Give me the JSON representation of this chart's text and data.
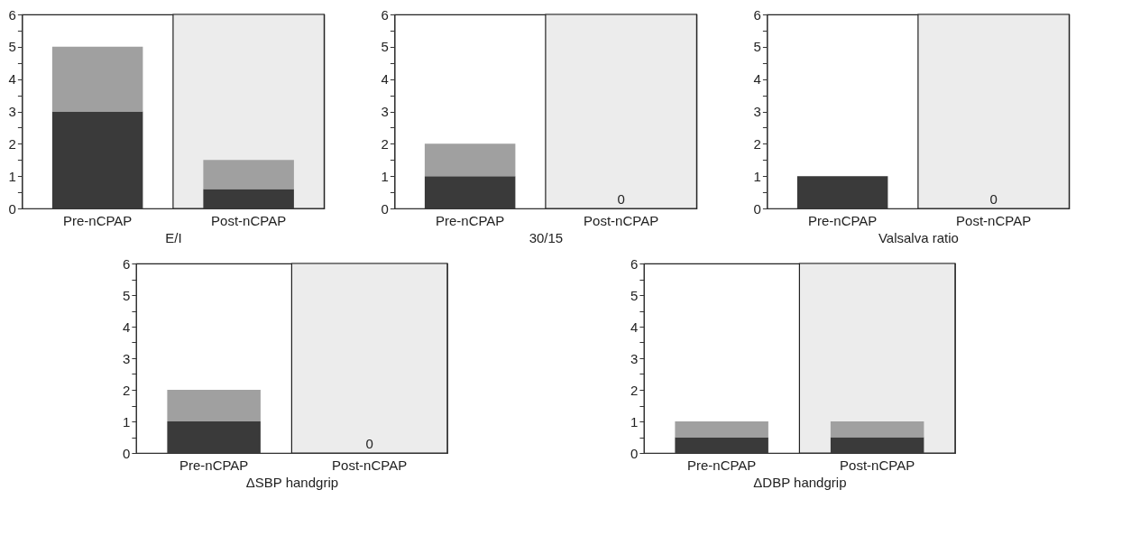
{
  "chart_data": [
    {
      "type": "bar",
      "xlabel": "E/I",
      "categories": [
        "Pre-nCPAP",
        "Post-nCPAP"
      ],
      "stacked": true,
      "ylim": [
        0,
        6
      ],
      "yticks": [
        0,
        {
          "value": 0.5,
          "label": null
        },
        1,
        {
          "value": 1.5,
          "label": null
        },
        2,
        {
          "value": 2.5,
          "label": null
        },
        3,
        {
          "value": 3.5,
          "label": null
        },
        4,
        {
          "value": 4.5,
          "label": null
        },
        5,
        {
          "value": 5.5,
          "label": null
        },
        6
      ],
      "series": [
        {
          "color": "#3a3a3a",
          "values": [
            3,
            0.6
          ]
        },
        {
          "color": "#a0a0a0",
          "values": [
            2,
            0.9
          ]
        }
      ],
      "bands": [
        {
          "axis": "x",
          "from": "Post-nCPAP",
          "to": "Post-nCPAP",
          "color": "#ececec"
        }
      ]
    },
    {
      "type": "bar",
      "xlabel": "30/15",
      "categories": [
        "Pre-nCPAP",
        "Post-nCPAP"
      ],
      "stacked": true,
      "ylim": [
        0,
        6
      ],
      "yticks": [
        0,
        {
          "value": 0.5,
          "label": null
        },
        1,
        {
          "value": 1.5,
          "label": null
        },
        2,
        {
          "value": 2.5,
          "label": null
        },
        3,
        {
          "value": 3.5,
          "label": null
        },
        4,
        {
          "value": 4.5,
          "label": null
        },
        5,
        {
          "value": 5.5,
          "label": null
        },
        6
      ],
      "series": [
        {
          "color": "#3a3a3a",
          "values": [
            1,
            0
          ]
        },
        {
          "color": "#a0a0a0",
          "values": [
            1,
            0
          ]
        }
      ],
      "bands": [
        {
          "axis": "x",
          "from": "Post-nCPAP",
          "to": "Post-nCPAP",
          "color": "#ececec"
        }
      ],
      "annotations": [
        {
          "text": "0",
          "x": "Post-nCPAP",
          "y": 0
        }
      ]
    },
    {
      "type": "bar",
      "xlabel": "Valsalva ratio",
      "categories": [
        "Pre-nCPAP",
        "Post-nCPAP"
      ],
      "stacked": true,
      "ylim": [
        0,
        6
      ],
      "yticks": [
        0,
        {
          "value": 0.5,
          "label": null
        },
        1,
        {
          "value": 1.5,
          "label": null
        },
        2,
        {
          "value": 2.5,
          "label": null
        },
        3,
        {
          "value": 3.5,
          "label": null
        },
        4,
        {
          "value": 4.5,
          "label": null
        },
        5,
        {
          "value": 5.5,
          "label": null
        },
        6
      ],
      "series": [
        {
          "color": "#3a3a3a",
          "values": [
            1,
            0
          ]
        },
        {
          "color": "#a0a0a0",
          "values": [
            0,
            0
          ]
        }
      ],
      "bands": [
        {
          "axis": "x",
          "from": "Post-nCPAP",
          "to": "Post-nCPAP",
          "color": "#ececec"
        }
      ],
      "annotations": [
        {
          "text": "0",
          "x": "Post-nCPAP",
          "y": 0
        }
      ]
    },
    {
      "type": "bar",
      "xlabel": "ΔSBP handgrip",
      "categories": [
        "Pre-nCPAP",
        "Post-nCPAP"
      ],
      "stacked": true,
      "ylim": [
        0,
        6
      ],
      "yticks": [
        0,
        {
          "value": 0.5,
          "label": null
        },
        1,
        {
          "value": 1.5,
          "label": null
        },
        2,
        {
          "value": 2.5,
          "label": null
        },
        3,
        {
          "value": 3.5,
          "label": null
        },
        4,
        {
          "value": 4.5,
          "label": null
        },
        5,
        {
          "value": 5.5,
          "label": null
        },
        6
      ],
      "series": [
        {
          "color": "#3a3a3a",
          "values": [
            1,
            0
          ]
        },
        {
          "color": "#a0a0a0",
          "values": [
            1,
            0
          ]
        }
      ],
      "bands": [
        {
          "axis": "x",
          "from": "Post-nCPAP",
          "to": "Post-nCPAP",
          "color": "#ececec"
        }
      ],
      "annotations": [
        {
          "text": "0",
          "x": "Post-nCPAP",
          "y": 0
        }
      ]
    },
    {
      "type": "bar",
      "xlabel": "ΔDBP handgrip",
      "categories": [
        "Pre-nCPAP",
        "Post-nCPAP"
      ],
      "stacked": true,
      "ylim": [
        0,
        6
      ],
      "yticks": [
        0,
        {
          "value": 0.5,
          "label": null
        },
        1,
        {
          "value": 1.5,
          "label": null
        },
        2,
        {
          "value": 2.5,
          "label": null
        },
        3,
        {
          "value": 3.5,
          "label": null
        },
        4,
        {
          "value": 4.5,
          "label": null
        },
        5,
        {
          "value": 5.5,
          "label": null
        },
        6
      ],
      "series": [
        {
          "color": "#3a3a3a",
          "values": [
            0.5,
            0.5
          ]
        },
        {
          "color": "#a0a0a0",
          "values": [
            0.5,
            0.5
          ]
        }
      ],
      "bands": [
        {
          "axis": "x",
          "from": "Post-nCPAP",
          "to": "Post-nCPAP",
          "color": "#ececec"
        }
      ]
    }
  ]
}
